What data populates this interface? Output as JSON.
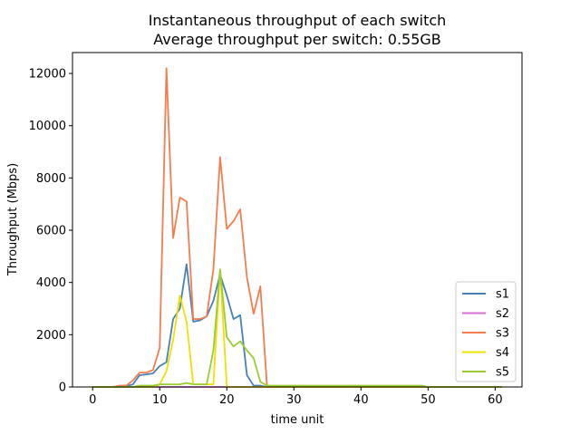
{
  "chart_data": {
    "type": "line",
    "title": "Instantaneous throughput of each switch",
    "subtitle": "Average throughput per switch: 0.55GB",
    "xlabel": "time unit",
    "ylabel": "Throughput (Mbps)",
    "xlim": [
      -3,
      64
    ],
    "ylim": [
      0,
      12800
    ],
    "xticks": [
      0,
      10,
      20,
      30,
      40,
      50,
      60
    ],
    "yticks": [
      0,
      2000,
      4000,
      6000,
      8000,
      10000,
      12000
    ],
    "grid": false,
    "legend_position": "lower-right",
    "x": [
      0,
      1,
      2,
      3,
      4,
      5,
      6,
      7,
      8,
      9,
      10,
      11,
      12,
      13,
      14,
      15,
      16,
      17,
      18,
      19,
      20,
      21,
      22,
      23,
      24,
      25,
      26,
      27,
      28,
      29,
      30,
      31,
      32,
      33,
      34,
      35,
      36,
      37,
      38,
      39,
      40,
      41,
      42,
      43,
      44,
      45,
      46,
      47,
      48,
      49,
      50,
      51,
      52,
      53,
      54,
      55,
      56,
      57,
      58,
      59,
      60,
      61
    ],
    "series": [
      {
        "name": "s1",
        "color": "#4682b4",
        "values": [
          0,
          0,
          0,
          0,
          0,
          30,
          100,
          450,
          480,
          520,
          800,
          950,
          2600,
          3000,
          4700,
          2500,
          2550,
          2700,
          3300,
          4300,
          3500,
          2600,
          2750,
          450,
          50,
          50,
          0,
          0,
          0,
          0,
          0,
          0,
          0,
          0,
          0,
          0,
          0,
          0,
          0,
          0,
          0,
          0,
          0,
          0,
          0,
          0,
          0,
          0,
          0,
          0,
          0,
          0,
          0,
          0,
          0,
          0,
          0,
          0,
          0,
          0,
          0,
          0
        ]
      },
      {
        "name": "s2",
        "color": "#da70d6",
        "values": [
          0,
          0,
          0,
          0,
          0,
          0,
          0,
          0,
          0,
          0,
          0,
          0,
          0,
          0,
          0,
          0,
          0,
          0,
          0,
          0,
          0,
          0,
          0,
          0,
          0,
          0,
          0,
          0,
          0,
          0,
          0,
          0,
          0,
          0,
          0,
          0,
          0,
          0,
          0,
          0,
          0,
          0,
          0,
          0,
          0,
          0,
          0,
          0,
          0,
          0,
          0,
          0,
          0,
          0,
          0,
          0,
          0,
          0,
          0,
          0,
          0,
          0
        ]
      },
      {
        "name": "s3",
        "color": "#f47c4e",
        "values": [
          0,
          0,
          0,
          0,
          50,
          50,
          250,
          550,
          550,
          650,
          1500,
          12200,
          5700,
          7250,
          7100,
          2600,
          2600,
          2700,
          4500,
          8800,
          6050,
          6350,
          6800,
          4200,
          2800,
          3850,
          0,
          0,
          0,
          0,
          0,
          0,
          0,
          0,
          0,
          0,
          0,
          0,
          0,
          0,
          0,
          0,
          0,
          0,
          0,
          0,
          0,
          0,
          0,
          0,
          0,
          0,
          0,
          0,
          0,
          0,
          0,
          0,
          0,
          0,
          0,
          0
        ]
      },
      {
        "name": "s4",
        "color": "#f0e000",
        "values": [
          0,
          0,
          0,
          0,
          0,
          0,
          0,
          0,
          0,
          0,
          100,
          600,
          1800,
          3500,
          2500,
          100,
          100,
          100,
          100,
          4500,
          0,
          0,
          0,
          0,
          0,
          0,
          0,
          0,
          0,
          0,
          0,
          0,
          0,
          0,
          0,
          0,
          0,
          0,
          0,
          0,
          0,
          0,
          0,
          0,
          0,
          0,
          0,
          0,
          0,
          0,
          0,
          0,
          0,
          0,
          0,
          0,
          0,
          0,
          0,
          0,
          0,
          0
        ]
      },
      {
        "name": "s5",
        "color": "#9acd32",
        "values": [
          0,
          0,
          0,
          0,
          0,
          0,
          0,
          50,
          50,
          50,
          100,
          100,
          100,
          100,
          150,
          100,
          100,
          100,
          1400,
          4500,
          1900,
          1550,
          1750,
          1400,
          1100,
          200,
          50,
          50,
          50,
          50,
          50,
          50,
          50,
          50,
          50,
          50,
          50,
          50,
          50,
          50,
          50,
          50,
          50,
          50,
          50,
          50,
          50,
          50,
          50,
          50,
          0,
          0,
          0,
          0,
          0,
          0,
          0,
          0,
          0,
          0,
          0,
          0
        ]
      }
    ]
  }
}
